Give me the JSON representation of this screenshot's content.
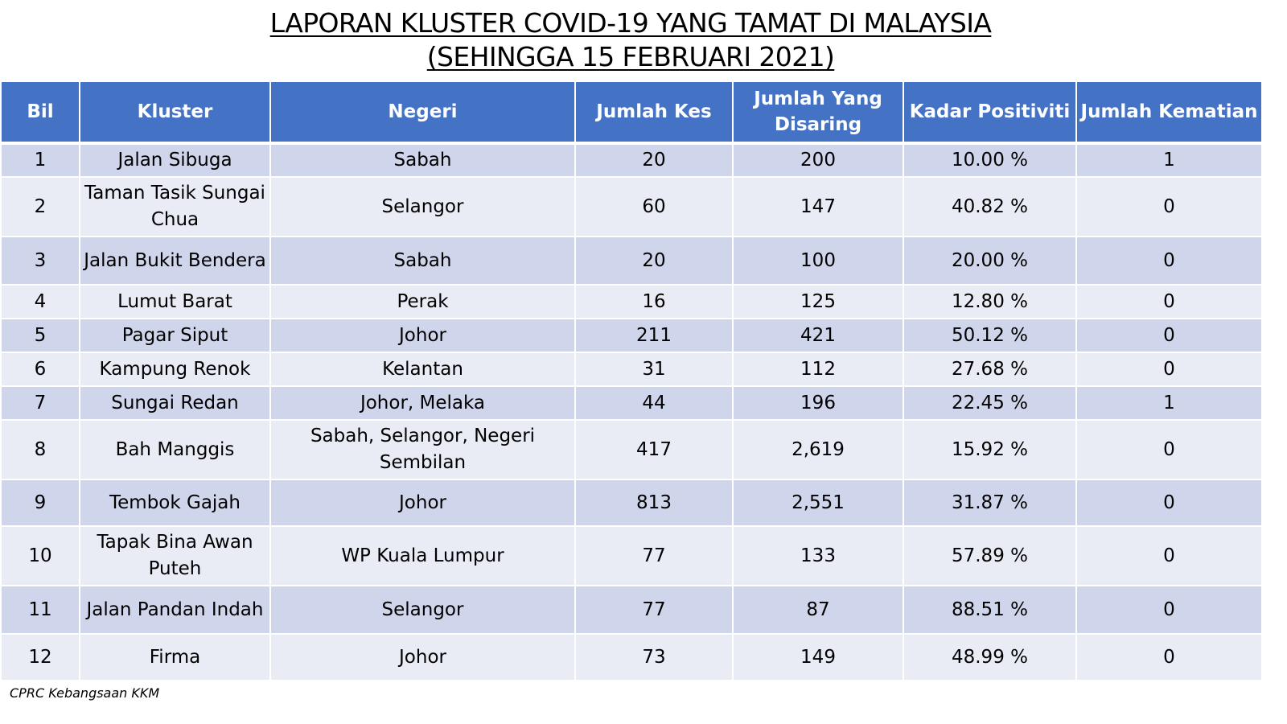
{
  "title": {
    "line1": "LAPORAN KLUSTER COVID-19 YANG TAMAT DI MALAYSIA",
    "line2": "(SEHINGGA  15 FEBRUARI 2021)"
  },
  "table": {
    "headers": {
      "bil": "Bil",
      "kluster": "Kluster",
      "negeri": "Negeri",
      "jumlah_kes": "Jumlah Kes",
      "jumlah_disaring": "Jumlah Yang Disaring",
      "kadar_positiviti": "Kadar Positiviti",
      "jumlah_kematian": "Jumlah Kematian"
    },
    "rows": [
      {
        "bil": "1",
        "kluster": "Jalan Sibuga",
        "negeri": "Sabah",
        "kes": "20",
        "disaring": "200",
        "kadar": "10.00 %",
        "kematian": "1"
      },
      {
        "bil": "2",
        "kluster": "Taman Tasik Sungai Chua",
        "negeri": "Selangor",
        "kes": "60",
        "disaring": "147",
        "kadar": "40.82 %",
        "kematian": "0"
      },
      {
        "bil": "3",
        "kluster": "Jalan Bukit Bendera",
        "negeri": "Sabah",
        "kes": "20",
        "disaring": "100",
        "kadar": "20.00 %",
        "kematian": "0"
      },
      {
        "bil": "4",
        "kluster": "Lumut Barat",
        "negeri": "Perak",
        "kes": "16",
        "disaring": "125",
        "kadar": "12.80 %",
        "kematian": "0"
      },
      {
        "bil": "5",
        "kluster": "Pagar Siput",
        "negeri": "Johor",
        "kes": "211",
        "disaring": "421",
        "kadar": "50.12 %",
        "kematian": "0"
      },
      {
        "bil": "6",
        "kluster": "Kampung Renok",
        "negeri": "Kelantan",
        "kes": "31",
        "disaring": "112",
        "kadar": "27.68 %",
        "kematian": "0"
      },
      {
        "bil": "7",
        "kluster": "Sungai Redan",
        "negeri": "Johor, Melaka",
        "kes": "44",
        "disaring": "196",
        "kadar": "22.45 %",
        "kematian": "1"
      },
      {
        "bil": "8",
        "kluster": "Bah Manggis",
        "negeri": "Sabah, Selangor, Negeri Sembilan",
        "kes": "417",
        "disaring": "2,619",
        "kadar": "15.92 %",
        "kematian": "0"
      },
      {
        "bil": "9",
        "kluster": "Tembok Gajah",
        "negeri": "Johor",
        "kes": "813",
        "disaring": "2,551",
        "kadar": "31.87 %",
        "kematian": "0"
      },
      {
        "bil": "10",
        "kluster": "Tapak Bina Awan Puteh",
        "negeri": "WP Kuala Lumpur",
        "kes": "77",
        "disaring": "133",
        "kadar": "57.89 %",
        "kematian": "0"
      },
      {
        "bil": "11",
        "kluster": "Jalan Pandan Indah",
        "negeri": "Selangor",
        "kes": "77",
        "disaring": "87",
        "kadar": "88.51 %",
        "kematian": "0"
      },
      {
        "bil": "12",
        "kluster": "Firma",
        "negeri": "Johor",
        "kes": "73",
        "disaring": "149",
        "kadar": "48.99 %",
        "kematian": "0"
      }
    ]
  },
  "source": "CPRC Kebangsaan KKM",
  "colors": {
    "header_bg": "#4472c4",
    "row_odd_bg": "#cfd5ea",
    "row_even_bg": "#e9ebf5"
  }
}
